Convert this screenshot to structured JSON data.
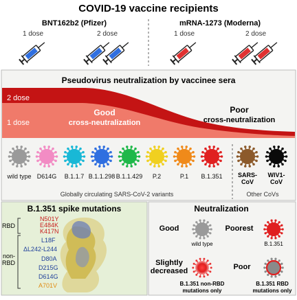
{
  "header": {
    "title": "COVID-19 vaccine recipients"
  },
  "vaccines": {
    "pfizer": {
      "name": "BNT162b2 (Pfizer)",
      "dose1": "1 dose",
      "dose2": "2 dose"
    },
    "moderna": {
      "name": "mRNA-1273 (Moderna)",
      "dose1": "1 dose",
      "dose2": "2 dose"
    }
  },
  "neutralization_panel": {
    "title": "Pseudovirus neutralization by vaccinee sera",
    "band_2dose": "2 dose",
    "band_1dose": "1 dose",
    "good_line1": "Good",
    "good_line2": "cross-neutralization",
    "poor_line1": "Poor",
    "poor_line2": "cross-neutralization"
  },
  "variants": [
    {
      "label": "wild type",
      "color": "#9a9a9a"
    },
    {
      "label": "D614G",
      "color": "#f28cc4"
    },
    {
      "label": "B.1.1.7",
      "color": "#19b8d6"
    },
    {
      "label": "B.1.1.298",
      "color": "#2f6fe0"
    },
    {
      "label": "B.1.1.429",
      "color": "#1fb84a"
    },
    {
      "label": "P.2",
      "color": "#f0d020"
    },
    {
      "label": "P.1",
      "color": "#f08a1a"
    },
    {
      "label": "B.1.351",
      "color": "#e02020"
    }
  ],
  "other_covs": [
    {
      "label_line1": "SARS-",
      "label_line2": "CoV",
      "color": "#8c5a2b"
    },
    {
      "label_line1": "WIV1-",
      "label_line2": "CoV",
      "color": "#0a0a0a"
    }
  ],
  "variant_captions": {
    "circulating": "Globally circulating SARS-CoV-2 variants",
    "other": "Other CoVs"
  },
  "mutations_panel": {
    "title": "B.1.351 spike mutations",
    "rbd_label": "RBD",
    "non_rbd_label_line1": "non-",
    "non_rbd_label_line2": "RBD",
    "rbd_mutations": [
      "N501Y",
      "E484K",
      "K417N"
    ],
    "non_rbd_mutations": [
      "L18F",
      "ΔL242-L244",
      "D80A",
      "D215G",
      "D614G",
      "A701V"
    ]
  },
  "neutralization_summary": {
    "title": "Neutralization",
    "good": "Good",
    "good_caption": "wild type",
    "poorest": "Poorest",
    "poorest_caption": "B.1.351",
    "slight_line1": "Slightly",
    "slight_line2": "decreased",
    "slight_caption_line1": "B.1.351 non-RBD",
    "slight_caption_line2": "mutations only",
    "poor": "Poor",
    "poor_caption_line1": "B.1.351 RBD",
    "poor_caption_line2": "mutations only"
  },
  "colors": {
    "band_dark": "#c41414",
    "band_light": "#f07a6a",
    "panel_bg": "#f4f4f2",
    "green_bg": "#e6f0d8",
    "rbd_text": "#c81e1e",
    "non_rbd_text": "#1e3f9a",
    "a701v_text": "#e08a10"
  }
}
